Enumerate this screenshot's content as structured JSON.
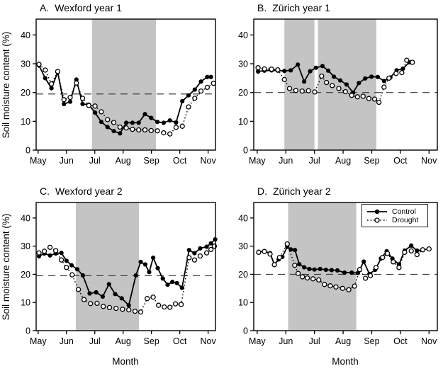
{
  "figure": {
    "y_axis_label": "Soil moisture content (%)",
    "x_axis_label": "Month",
    "background": "#ffffff",
    "colors": {
      "line": "#000000",
      "shaded_band": "#c4c4c4",
      "dashed_reference": "#3a3a3a",
      "marker_open_fill": "#ffffff",
      "text": "#000000"
    }
  },
  "legend": {
    "items": [
      {
        "label": "Control",
        "marker": "filled-circle",
        "line_style": "solid"
      },
      {
        "label": "Drought",
        "marker": "open-circle",
        "line_style": "dotted"
      }
    ]
  },
  "chart_data": [
    {
      "id": "A",
      "type": "line",
      "title_prefix": "A.",
      "title": "Wexford year 1",
      "xlim": [
        4.93,
        11.26
      ],
      "ylim": [
        0,
        45.5
      ],
      "yticks": [
        0,
        10,
        20,
        30,
        40
      ],
      "xticks": [
        5,
        6,
        7,
        8,
        9,
        10,
        11
      ],
      "xtick_labels": [
        "May",
        "Jun",
        "Jul",
        "Aug",
        "Sep",
        "Oct",
        "Nov"
      ],
      "dashed_line_y": 19.5,
      "shaded_x_ranges": [
        [
          6.9,
          9.16
        ]
      ],
      "series": [
        {
          "name": "Control",
          "line_style": "solid",
          "marker": "filled-circle",
          "x": [
            5.03,
            5.25,
            5.47,
            5.69,
            5.91,
            6.13,
            6.35,
            6.57,
            6.79,
            7.01,
            7.23,
            7.45,
            7.67,
            7.89,
            8.11,
            8.33,
            8.55,
            8.77,
            8.99,
            9.21,
            9.43,
            9.65,
            9.87,
            10.09,
            10.31,
            10.53,
            10.75,
            10.97,
            11.1
          ],
          "y": [
            29.4,
            25.0,
            21.5,
            27.0,
            16.0,
            16.8,
            24.5,
            16.0,
            15.8,
            13.0,
            9.8,
            8.0,
            6.6,
            5.8,
            9.5,
            9.5,
            9.5,
            12.5,
            11.2,
            9.8,
            9.5,
            10.3,
            9.6,
            17.0,
            19.0,
            21.0,
            23.8,
            25.4,
            25.4
          ]
        },
        {
          "name": "Drought",
          "line_style": "dotted",
          "marker": "open-circle",
          "x": [
            5.03,
            5.25,
            5.47,
            5.69,
            5.91,
            6.13,
            6.35,
            6.57,
            6.79,
            7.01,
            7.23,
            7.45,
            7.67,
            7.89,
            8.11,
            8.33,
            8.55,
            8.77,
            8.99,
            9.21,
            9.43,
            9.65,
            9.87,
            10.09,
            10.31,
            10.53,
            10.75,
            10.97,
            11.19
          ],
          "y": [
            29.8,
            27.8,
            23.0,
            27.3,
            17.5,
            18.3,
            23.3,
            18.0,
            15.5,
            15.3,
            13.3,
            10.6,
            9.6,
            8.0,
            7.7,
            7.2,
            7.0,
            7.0,
            6.8,
            6.7,
            6.0,
            5.6,
            7.9,
            8.3,
            15.0,
            18.0,
            20.5,
            21.8,
            23.2
          ]
        }
      ]
    },
    {
      "id": "B",
      "type": "line",
      "title_prefix": "B.",
      "title": "Zürich year 1",
      "xlim": [
        4.88,
        11.29
      ],
      "ylim": [
        0,
        45.5
      ],
      "yticks": [
        0,
        10,
        20,
        30,
        40
      ],
      "xticks": [
        5,
        6,
        7,
        8,
        9,
        10,
        11
      ],
      "xtick_labels": [
        "May",
        "Jun",
        "Jul",
        "Aug",
        "Sep",
        "Oct",
        "Nov"
      ],
      "dashed_line_y": 20,
      "shaded_x_ranges": [
        [
          5.95,
          7.0
        ],
        [
          7.12,
          9.16
        ]
      ],
      "series": [
        {
          "name": "Control",
          "line_style": "solid",
          "marker": "filled-circle",
          "x": [
            5.03,
            5.25,
            5.5,
            5.72,
            5.95,
            6.17,
            6.42,
            6.64,
            6.85,
            7.05,
            7.28,
            7.48,
            7.68,
            7.9,
            8.12,
            8.35,
            8.55,
            8.77,
            8.99,
            9.21,
            9.43,
            9.65,
            9.87,
            10.09,
            10.31
          ],
          "y": [
            27.3,
            27.6,
            27.7,
            27.6,
            27.5,
            27.7,
            29.7,
            23.8,
            27.4,
            28.6,
            29.2,
            27.6,
            25.5,
            24.2,
            22.8,
            20.0,
            23.3,
            24.9,
            25.5,
            25.4,
            24.0,
            25.2,
            27.7,
            28.3,
            30.5
          ]
        },
        {
          "name": "Drought",
          "line_style": "dotted",
          "marker": "open-circle",
          "x": [
            5.03,
            5.25,
            5.5,
            5.72,
            5.95,
            6.13,
            6.35,
            6.57,
            6.79,
            7.01,
            7.25,
            7.42,
            7.62,
            7.85,
            8.08,
            8.3,
            8.5,
            8.7,
            8.9,
            9.1,
            9.25,
            9.43,
            9.6,
            9.85,
            10.05,
            10.22,
            10.42
          ],
          "y": [
            28.6,
            28.2,
            28.1,
            27.9,
            24.5,
            21.4,
            20.7,
            20.5,
            20.6,
            20.2,
            25.7,
            23.5,
            22.4,
            21.4,
            20.3,
            19.0,
            18.5,
            18.7,
            17.9,
            17.7,
            16.6,
            21.9,
            25.0,
            26.6,
            26.9,
            31.2,
            30.5
          ]
        }
      ]
    },
    {
      "id": "C",
      "type": "line",
      "title_prefix": "C.",
      "title": "Wexford year 2",
      "xlim": [
        4.93,
        11.26
      ],
      "ylim": [
        0,
        45.5
      ],
      "yticks": [
        0,
        10,
        20,
        30,
        40
      ],
      "xticks": [
        5,
        6,
        7,
        8,
        9,
        10,
        11
      ],
      "xtick_labels": [
        "May",
        "Jun",
        "Jul",
        "Aug",
        "Sep",
        "Oct",
        "Nov"
      ],
      "dashed_line_y": 19.5,
      "shaded_x_ranges": [
        [
          6.33,
          8.56
        ]
      ],
      "series": [
        {
          "name": "Control",
          "line_style": "solid",
          "marker": "filled-circle",
          "x": [
            5.03,
            5.22,
            5.42,
            5.62,
            5.82,
            6.0,
            6.18,
            6.38,
            6.58,
            6.82,
            7.05,
            7.28,
            7.5,
            7.72,
            7.95,
            8.2,
            8.45,
            8.62,
            8.78,
            8.92,
            9.06,
            9.22,
            9.4,
            9.57,
            9.74,
            9.9,
            10.08,
            10.33,
            10.52,
            10.72,
            10.95,
            11.1,
            11.25
          ],
          "y": [
            26.4,
            27.4,
            26.7,
            27.4,
            27.6,
            24.8,
            23.2,
            21.8,
            19.6,
            13.2,
            13.6,
            12.1,
            16.5,
            13.0,
            11.5,
            9.0,
            19.6,
            24.4,
            23.5,
            20.8,
            25.9,
            22.2,
            18.5,
            16.3,
            17.3,
            16.9,
            15.2,
            28.6,
            27.5,
            29.2,
            29.8,
            31.0,
            32.4
          ]
        },
        {
          "name": "Drought",
          "line_style": "dotted",
          "marker": "open-circle",
          "x": [
            5.03,
            5.22,
            5.42,
            5.62,
            5.82,
            6.0,
            6.2,
            6.42,
            6.62,
            6.85,
            7.08,
            7.3,
            7.52,
            7.75,
            7.98,
            8.2,
            8.42,
            8.62,
            8.85,
            9.06,
            9.25,
            9.45,
            9.65,
            9.85,
            10.05,
            10.33,
            10.52,
            10.72,
            10.95,
            11.1,
            11.22
          ],
          "y": [
            27.6,
            28.2,
            29.6,
            28.4,
            25.1,
            22.4,
            19.8,
            14.6,
            11.0,
            9.6,
            9.7,
            8.6,
            8.2,
            7.9,
            7.6,
            7.4,
            6.9,
            6.6,
            11.4,
            11.9,
            9.0,
            8.4,
            8.3,
            9.5,
            9.3,
            25.9,
            25.1,
            26.5,
            27.6,
            28.8,
            30.0
          ]
        }
      ]
    },
    {
      "id": "D",
      "type": "line",
      "title_prefix": "D.",
      "title": "Zürich year 2",
      "xlim": [
        4.88,
        11.29
      ],
      "ylim": [
        0,
        45.5
      ],
      "yticks": [
        0,
        10,
        20,
        30,
        40
      ],
      "xticks": [
        5,
        6,
        7,
        8,
        9,
        10,
        11
      ],
      "xtick_labels": [
        "May",
        "Jun",
        "Jul",
        "Aug",
        "Sep",
        "Oct",
        "Nov"
      ],
      "dashed_line_y": 20,
      "shaded_x_ranges": [
        [
          6.08,
          8.46
        ]
      ],
      "series": [
        {
          "name": "Control",
          "line_style": "solid",
          "marker": "filled-circle",
          "x": [
            5.05,
            5.25,
            5.45,
            5.6,
            5.75,
            5.88,
            6.05,
            6.18,
            6.32,
            6.47,
            6.64,
            6.82,
            7.0,
            7.2,
            7.4,
            7.6,
            7.8,
            8.05,
            8.3,
            8.52,
            8.72,
            8.92,
            9.12,
            9.32,
            9.52,
            9.72,
            9.95,
            10.15,
            10.38,
            10.58,
            10.78,
            11.0
          ],
          "y": [
            28.0,
            28.2,
            27.5,
            23.5,
            25.3,
            26.2,
            29.8,
            28.8,
            28.6,
            23.6,
            22.5,
            21.9,
            21.7,
            21.9,
            21.6,
            21.5,
            21.4,
            20.6,
            20.6,
            20.5,
            24.5,
            20.1,
            21.6,
            25.6,
            28.2,
            25.6,
            23.5,
            28.4,
            30.2,
            28.4,
            28.6,
            29.1
          ]
        },
        {
          "name": "Drought",
          "line_style": "dotted",
          "marker": "open-circle",
          "x": [
            5.05,
            5.25,
            5.45,
            5.6,
            5.78,
            6.05,
            6.31,
            6.43,
            6.58,
            6.75,
            6.95,
            7.15,
            7.35,
            7.55,
            7.75,
            7.98,
            8.2,
            8.4,
            8.58,
            8.78,
            8.95,
            9.15,
            9.38,
            9.55,
            9.75,
            9.95,
            10.15,
            10.38,
            10.58,
            10.78,
            11.0
          ],
          "y": [
            27.8,
            28.1,
            27.2,
            23.4,
            26.0,
            30.8,
            23.2,
            20.3,
            19.1,
            18.7,
            18.4,
            18.0,
            16.4,
            15.9,
            15.5,
            15.0,
            14.5,
            15.8,
            21.7,
            18.6,
            19.5,
            22.4,
            26.0,
            27.4,
            24.4,
            22.4,
            27.8,
            28.3,
            27.0,
            28.7,
            29.0
          ]
        }
      ]
    }
  ]
}
